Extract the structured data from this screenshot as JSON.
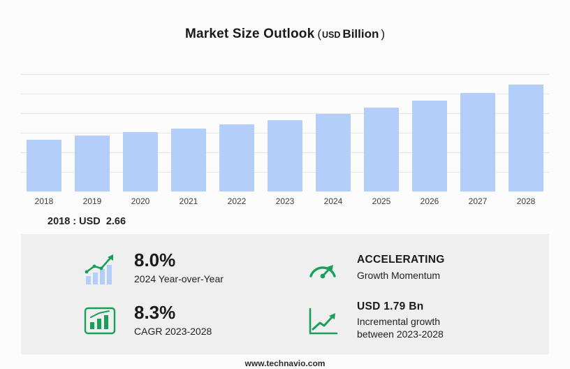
{
  "title": {
    "main": "Market Size Outlook",
    "paren_open": "(",
    "currency": "USD",
    "unit": "Billion",
    "paren_close": ")"
  },
  "chart_data": {
    "type": "bar",
    "title": "Market Size Outlook (USD Billion)",
    "categories": [
      "2018",
      "2019",
      "2020",
      "2021",
      "2022",
      "2023",
      "2024",
      "2025",
      "2026",
      "2027",
      "2028"
    ],
    "values": [
      2.66,
      2.84,
      3.02,
      3.22,
      3.43,
      3.66,
      3.96,
      4.29,
      4.65,
      5.03,
      5.45
    ],
    "xlabel": "",
    "ylabel": "USD Billion",
    "ylim": [
      0,
      6
    ],
    "grid": true,
    "legend": false,
    "annotation": "2018 : USD  2.66"
  },
  "annotation": {
    "text": "2018 : USD  2.66"
  },
  "stats": [
    {
      "icon": "yoy-bars-arrow",
      "value": "8.0%",
      "caption": "2024 Year-over-Year"
    },
    {
      "icon": "gauge",
      "value": "ACCELERATING",
      "caption": "Growth Momentum"
    },
    {
      "icon": "cagr-chart-box",
      "value": "8.3%",
      "caption": "CAGR 2023-2028"
    },
    {
      "icon": "incremental-line-arrow",
      "value": "USD 1.79 Bn",
      "caption": "Incremental growth between 2023-2028"
    }
  ],
  "footer": {
    "url": "www.technavio.com"
  },
  "colors": {
    "bar": "#b4cefa",
    "icon_green": "#18a05a",
    "icon_blue": "#b4cefa",
    "panel_bg": "#efefef",
    "grid": "#e6e6e6"
  }
}
